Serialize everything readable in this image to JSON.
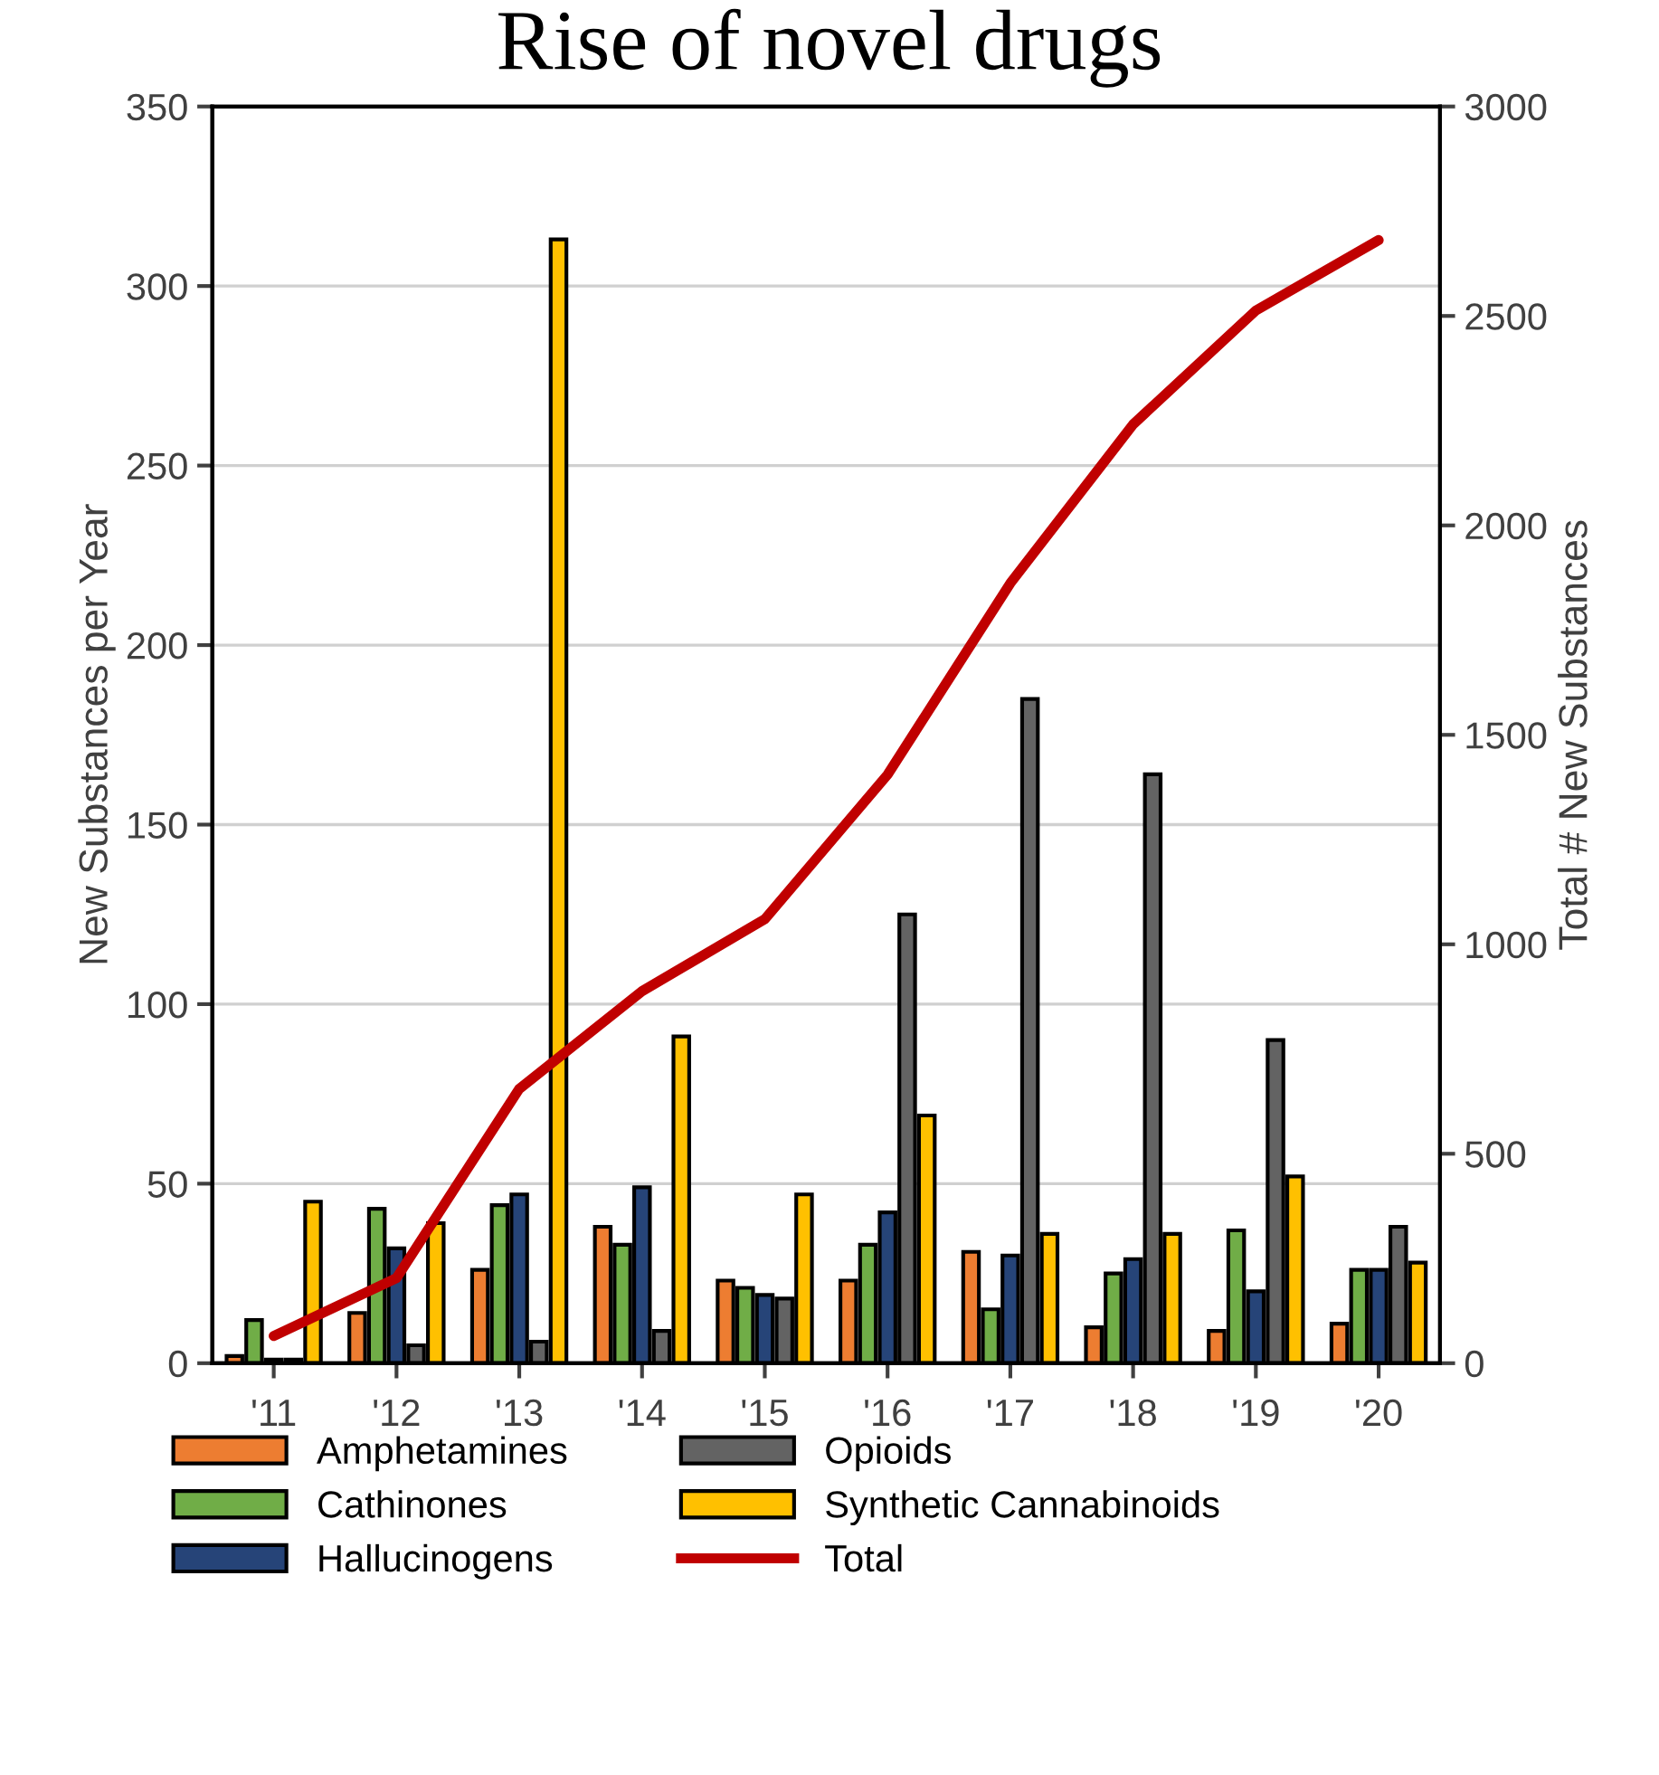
{
  "chart_data": {
    "type": "bar",
    "title": "Rise of novel drugs",
    "ylabel": "New Substances per Year",
    "y2label": "Total # New Substances",
    "categories": [
      "'11",
      "'12",
      "'13",
      "'14",
      "'15",
      "'16",
      "'17",
      "'18",
      "'19",
      "'20"
    ],
    "series": [
      {
        "name": "Amphetamines",
        "color": "#ed7d31",
        "values": [
          2,
          14,
          26,
          38,
          23,
          23,
          31,
          10,
          9,
          11
        ]
      },
      {
        "name": "Cathinones",
        "color": "#70ad47",
        "values": [
          12,
          43,
          44,
          33,
          21,
          33,
          15,
          25,
          37,
          26
        ]
      },
      {
        "name": "Hallucinogens",
        "color": "#264478",
        "values": [
          1,
          32,
          47,
          49,
          19,
          42,
          30,
          29,
          20,
          26
        ]
      },
      {
        "name": "Opioids",
        "color": "#636363",
        "values": [
          1,
          5,
          6,
          9,
          18,
          125,
          185,
          164,
          90,
          38
        ]
      },
      {
        "name": "Synthetic Cannabinoids",
        "color": "#ffc000",
        "values": [
          45,
          39,
          313,
          91,
          47,
          69,
          36,
          36,
          52,
          28
        ]
      },
      {
        "name": "Total",
        "type": "line",
        "axis": "y2",
        "color": "#c00000",
        "values": [
          65,
          203,
          655,
          888,
          1060,
          1405,
          1862,
          2241,
          2513,
          2681
        ]
      }
    ],
    "ylim": [
      0,
      350
    ],
    "yticks": [
      0,
      50,
      100,
      150,
      200,
      250,
      300,
      350
    ],
    "y2lim": [
      0,
      3000
    ],
    "y2ticks": [
      0,
      500,
      1000,
      1500,
      2000,
      2500,
      3000
    ],
    "grid": "y",
    "legend": "bottom"
  }
}
